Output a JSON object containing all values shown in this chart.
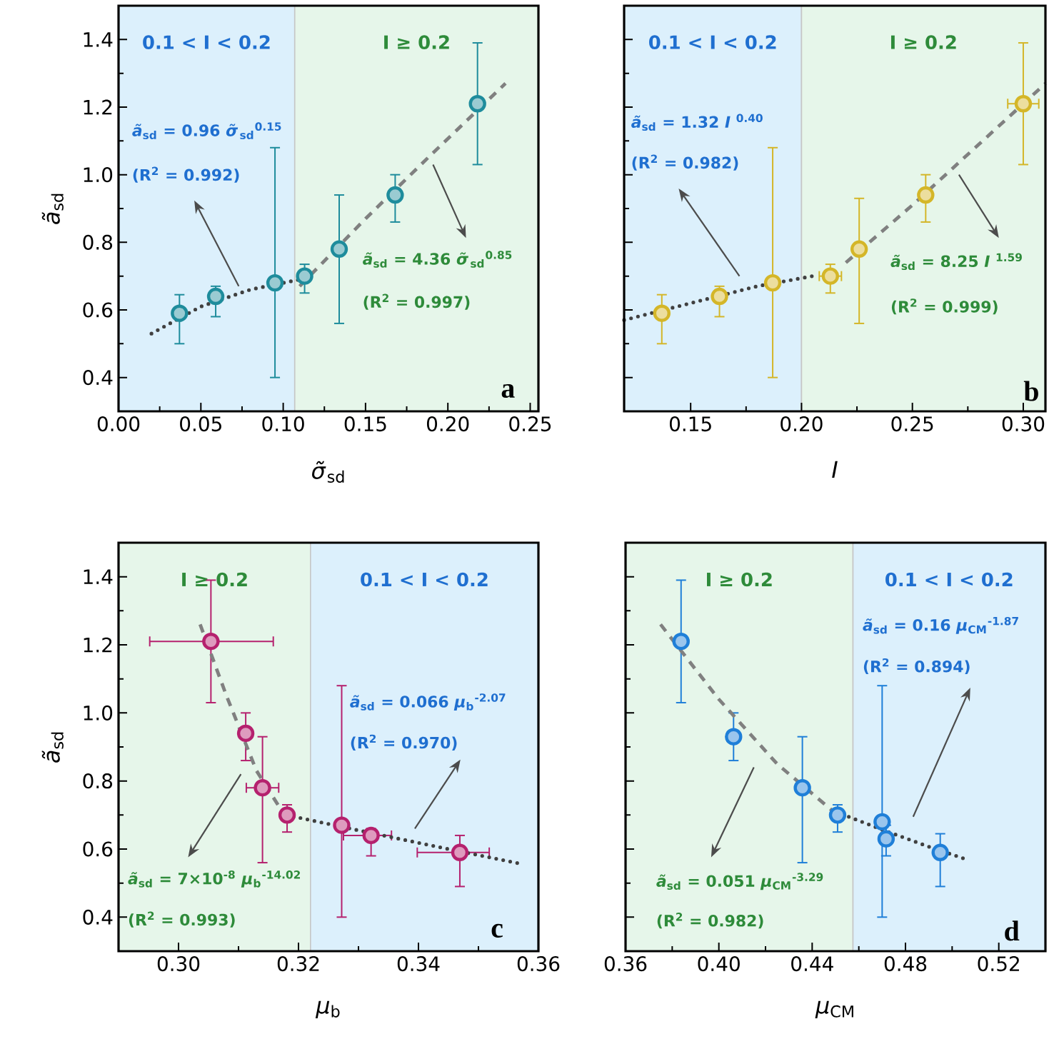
{
  "chart_data": [
    {
      "type": "scatter",
      "xlabel": "*σ̃*$_{sd}$",
      "ylabel": "*ã*$_{sd}$",
      "xlim": [
        0,
        0.255
      ],
      "ylim": [
        0.3,
        1.5
      ],
      "xticks": [
        {
          "value": 0,
          "label": "0.00"
        },
        {
          "value": 0.05,
          "label": "0.05"
        },
        {
          "value": 0.1,
          "label": "0.10"
        },
        {
          "value": 0.15,
          "label": "0.15"
        },
        {
          "value": 0.2,
          "label": "0.20"
        },
        {
          "value": 0.25,
          "label": "0.25"
        }
      ],
      "yticks": [
        {
          "value": 0.4,
          "label": "0.4"
        },
        {
          "value": 0.6,
          "label": "0.6"
        },
        {
          "value": 0.8,
          "label": "0.8"
        },
        {
          "value": 1.0,
          "label": "1.0"
        },
        {
          "value": 1.2,
          "label": "1.2"
        },
        {
          "value": 1.4,
          "label": "1.4"
        }
      ],
      "bands": [
        {
          "axis": "x",
          "from": 0,
          "to": 0.107,
          "label": "0.1 < I < 0.2",
          "color": "#dcf0fc"
        },
        {
          "axis": "x",
          "from": 0.107,
          "to": 0.255,
          "label": "I ≥ 0.2",
          "color": "#e6f6ea"
        }
      ],
      "annotations": [
        "*ã*$_{sd}$ = 0.96 *σ̃*$_{sd}$$^{0.15}$",
        "(R$^{2}$ = 0.992)",
        "*ã*$_{sd}$ = 4.36 *σ̃*$_{sd}$$^{0.85}$",
        "(R$^{2}$ = 0.997)",
        "a"
      ],
      "series": [
        {
          "type": "scatter",
          "marker": "circle",
          "color": "#1e8c9c",
          "x": [
            0.037,
            0.059,
            0.095,
            0.113,
            0.134,
            0.168,
            0.218
          ],
          "values": [
            0.59,
            0.64,
            0.68,
            0.7,
            0.78,
            0.94,
            1.21
          ],
          "errors": [
            [
              0.5,
              0.645
            ],
            [
              0.58,
              0.67
            ],
            [
              0.4,
              1.08
            ],
            [
              0.65,
              0.735
            ],
            [
              0.56,
              0.94
            ],
            [
              0.86,
              1.0
            ],
            [
              1.03,
              1.39
            ]
          ]
        },
        {
          "type": "line",
          "marker": "none",
          "line_style": "dotted",
          "color": "#404040",
          "x": [
            0.02,
            0.05,
            0.08,
            0.11
          ],
          "values": [
            0.53,
            0.61,
            0.66,
            0.69
          ]
        },
        {
          "type": "line",
          "marker": "none",
          "line_style": "dashed",
          "color": "#808080",
          "x": [
            0.11,
            0.15,
            0.19,
            0.235
          ],
          "values": [
            0.67,
            0.87,
            1.06,
            1.27
          ]
        }
      ]
    },
    {
      "type": "scatter",
      "xlabel": "*I*",
      "xlim": [
        0.12,
        0.31
      ],
      "ylim": [
        0.3,
        1.5
      ],
      "tick_labels": "x",
      "xticks": [
        {
          "value": 0.15,
          "label": "0.15"
        },
        {
          "value": 0.2,
          "label": "0.20"
        },
        {
          "value": 0.25,
          "label": "0.25"
        },
        {
          "value": 0.3,
          "label": "0.30"
        }
      ],
      "yticks": [
        {
          "value": 0.4,
          "label": null
        },
        {
          "value": 0.6,
          "label": null
        },
        {
          "value": 0.8,
          "label": null
        },
        {
          "value": 1.0,
          "label": null
        },
        {
          "value": 1.2,
          "label": null
        },
        {
          "value": 1.4,
          "label": null
        }
      ],
      "bands": [
        {
          "axis": "x",
          "from": 0.12,
          "to": 0.2,
          "label": "0.1 < I < 0.2",
          "color": "#dcf0fc"
        },
        {
          "axis": "x",
          "from": 0.2,
          "to": 0.31,
          "label": "I ≥ 0.2",
          "color": "#e6f6ea"
        }
      ],
      "annotations": [
        "*ã*$_{sd}$ = 1.32 *I* $^{0.40}$",
        "(R$^{2}$ = 0.982)",
        "*ã*$_{sd}$ = 8.25 *I* $^{1.59}$",
        "(R$^{2}$ = 0.999)",
        "b"
      ],
      "series": [
        {
          "type": "scatter",
          "marker": "circle",
          "color": "#d4b628",
          "x": [
            0.137,
            0.163,
            0.187,
            0.213,
            0.226,
            0.256,
            0.3
          ],
          "values": [
            0.59,
            0.64,
            0.68,
            0.7,
            0.78,
            0.94,
            1.21
          ],
          "errors": [
            [
              0.5,
              0.645
            ],
            [
              0.58,
              0.67
            ],
            [
              0.4,
              1.08
            ],
            [
              0.65,
              0.735
            ],
            [
              0.56,
              0.93
            ],
            [
              0.86,
              1.0
            ],
            [
              1.03,
              1.39
            ]
          ],
          "xerrors": [
            null,
            null,
            null,
            0.005,
            null,
            null,
            0.007
          ]
        },
        {
          "type": "line",
          "marker": "none",
          "line_style": "dotted",
          "color": "#404040",
          "x": [
            0.12,
            0.15,
            0.18,
            0.205
          ],
          "values": [
            0.57,
            0.62,
            0.67,
            0.7
          ]
        },
        {
          "type": "line",
          "marker": "none",
          "line_style": "dashed",
          "color": "#808080",
          "x": [
            0.22,
            0.25,
            0.28,
            0.31
          ],
          "values": [
            0.74,
            0.91,
            1.09,
            1.27
          ]
        }
      ]
    },
    {
      "type": "scatter",
      "xlabel": "*μ*$_{b}$",
      "ylabel": "*ã*$_{sd}$",
      "xlim": [
        0.29,
        0.36
      ],
      "ylim": [
        0.3,
        1.5
      ],
      "xticks": [
        {
          "value": 0.3,
          "label": "0.30"
        },
        {
          "value": 0.32,
          "label": "0.32"
        },
        {
          "value": 0.34,
          "label": "0.34"
        },
        {
          "value": 0.36,
          "label": "0.36"
        }
      ],
      "yticks": [
        {
          "value": 0.4,
          "label": "0.4"
        },
        {
          "value": 0.6,
          "label": "0.6"
        },
        {
          "value": 0.8,
          "label": "0.8"
        },
        {
          "value": 1.0,
          "label": "1.0"
        },
        {
          "value": 1.2,
          "label": "1.2"
        },
        {
          "value": 1.4,
          "label": "1.4"
        }
      ],
      "bands": [
        {
          "axis": "x",
          "from": 0.29,
          "to": 0.322,
          "label": "I ≥ 0.2",
          "color": "#e6f6ea"
        },
        {
          "axis": "x",
          "from": 0.322,
          "to": 0.36,
          "label": "0.1 < I < 0.2",
          "color": "#dcf0fc"
        }
      ],
      "annotations": [
        "*ã*$_{sd}$ = 7×10$^{-8}$ *μ*$_{b}$$^{-14.02}$",
        "(R$^{2}$ = 0.993)",
        "*ã*$_{sd}$ = 0.066 *μ*$_{b}$$^{-2.07}$",
        "(R$^{2}$ = 0.970)",
        "c"
      ],
      "series": [
        {
          "type": "scatter",
          "marker": "circle",
          "color": "#b5216e",
          "x": [
            0.3054,
            0.3112,
            0.314,
            0.3181,
            0.3272,
            0.3321,
            0.3469
          ],
          "values": [
            1.21,
            0.94,
            0.78,
            0.7,
            0.67,
            0.64,
            0.59
          ],
          "errors": [
            [
              1.03,
              1.39
            ],
            [
              0.86,
              1.0
            ],
            [
              0.56,
              0.93
            ],
            [
              0.65,
              0.73
            ],
            [
              0.4,
              1.08
            ],
            [
              0.58,
              0.66
            ],
            [
              0.49,
              0.64
            ]
          ],
          "xerrors": [
            [
              0.2952,
              0.3158
            ],
            null,
            0.0027,
            null,
            null,
            [
              0.3275,
              0.3355
            ],
            [
              0.3398,
              0.3518
            ]
          ]
        },
        {
          "type": "line",
          "marker": "none",
          "line_style": "dashed",
          "color": "#808080",
          "x": [
            0.3036,
            0.308,
            0.313,
            0.318
          ],
          "values": [
            1.26,
            1.05,
            0.83,
            0.69
          ]
        },
        {
          "type": "line",
          "marker": "none",
          "line_style": "dotted",
          "color": "#404040",
          "x": [
            0.318,
            0.33,
            0.345,
            0.357
          ],
          "values": [
            0.7,
            0.655,
            0.6,
            0.557
          ]
        }
      ]
    },
    {
      "type": "scatter",
      "xlabel": "*μ*$_{CM}$",
      "xlim": [
        0.36,
        0.54
      ],
      "ylim": [
        0.3,
        1.5
      ],
      "tick_labels": "x",
      "xticks": [
        {
          "value": 0.36,
          "label": "0.36"
        },
        {
          "value": 0.4,
          "label": "0.40"
        },
        {
          "value": 0.44,
          "label": "0.44"
        },
        {
          "value": 0.48,
          "label": "0.48"
        },
        {
          "value": 0.52,
          "label": "0.52"
        }
      ],
      "yticks": [
        {
          "value": 0.4,
          "label": null
        },
        {
          "value": 0.6,
          "label": null
        },
        {
          "value": 0.8,
          "label": null
        },
        {
          "value": 1.0,
          "label": null
        },
        {
          "value": 1.2,
          "label": null
        },
        {
          "value": 1.4,
          "label": null
        }
      ],
      "bands": [
        {
          "axis": "x",
          "from": 0.36,
          "to": 0.4575,
          "label": "I ≥ 0.2",
          "color": "#e6f6ea"
        },
        {
          "axis": "x",
          "from": 0.4575,
          "to": 0.54,
          "label": "0.1 < I < 0.2",
          "color": "#dcf0fc"
        }
      ],
      "annotations": [
        "*ã*$_{sd}$ = 0.051 *μ*$_{CM}$$^{-3.29}$",
        "(R$^{2}$ = 0.982)",
        "*ã*$_{sd}$ = 0.16 *μ*$_{CM}$$^{-1.87}$",
        "(R$^{2}$ = 0.894)",
        "d"
      ],
      "series": [
        {
          "type": "scatter",
          "marker": "circle",
          "color": "#1f7fd8",
          "x": [
            0.3838,
            0.4063,
            0.4358,
            0.4509,
            0.47,
            0.4717,
            0.4949
          ],
          "values": [
            1.21,
            0.93,
            0.78,
            0.7,
            0.68,
            0.63,
            0.59
          ],
          "errors": [
            [
              1.03,
              1.39
            ],
            [
              0.86,
              1.0
            ],
            [
              0.56,
              0.93
            ],
            [
              0.65,
              0.73
            ],
            [
              0.4,
              1.08
            ],
            [
              0.58,
              0.67
            ],
            [
              0.49,
              0.645
            ]
          ]
        },
        {
          "type": "line",
          "marker": "none",
          "line_style": "dashed",
          "color": "#808080",
          "x": [
            0.375,
            0.4,
            0.425,
            0.45
          ],
          "values": [
            1.26,
            1.04,
            0.85,
            0.705
          ]
        },
        {
          "type": "line",
          "marker": "none",
          "line_style": "dotted",
          "color": "#404040",
          "x": [
            0.45,
            0.47,
            0.49,
            0.506
          ],
          "values": [
            0.71,
            0.657,
            0.607,
            0.57
          ]
        }
      ]
    }
  ]
}
